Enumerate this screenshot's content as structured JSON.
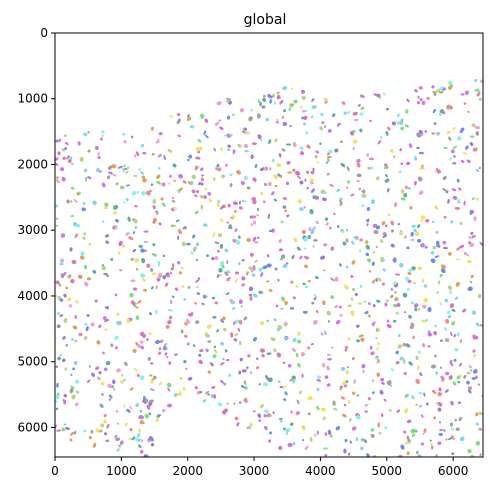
{
  "chart_data": {
    "type": "scatter",
    "title": "global",
    "xlabel": "",
    "ylabel": "",
    "xlim": [
      0,
      6450
    ],
    "ylim": [
      6450,
      0
    ],
    "y_inverted": true,
    "xticks": [
      0,
      1000,
      2000,
      3000,
      4000,
      5000,
      6000
    ],
    "yticks": [
      0,
      1000,
      2000,
      3000,
      4000,
      5000,
      6000
    ],
    "xtick_labels": [
      "0",
      "1000",
      "2000",
      "3000",
      "4000",
      "5000",
      "6000"
    ],
    "ytick_labels": [
      "0",
      "1000",
      "2000",
      "3000",
      "4000",
      "5000",
      "6000"
    ],
    "grid": false,
    "description_of_marks": "thousands of small randomly colored cell segmentation blobs filling the tissue region",
    "tissue_region_outline": {
      "top_boundary": [
        [
          0,
          1500
        ],
        [
          800,
          1500
        ],
        [
          1500,
          1350
        ],
        [
          2200,
          1050
        ],
        [
          2800,
          850
        ],
        [
          3500,
          800
        ],
        [
          4200,
          1050
        ],
        [
          5000,
          850
        ],
        [
          5800,
          750
        ],
        [
          6450,
          700
        ]
      ],
      "bottom_boundary": [
        [
          0,
          6150
        ],
        [
          700,
          6300
        ],
        [
          1400,
          6450
        ],
        [
          1700,
          5700
        ],
        [
          2000,
          5450
        ],
        [
          2600,
          5900
        ],
        [
          3100,
          6200
        ],
        [
          3700,
          6450
        ],
        [
          6450,
          6450
        ]
      ],
      "left_gaps": [
        [
          0,
          4700
        ],
        [
          0,
          4950
        ]
      ]
    },
    "palette": [
      "#6b8df0",
      "#e06ad8",
      "#7ee07a",
      "#f2e06a",
      "#8af0e8",
      "#c77af2",
      "#f08a8a",
      "#a0a0a0",
      "#b9d48a",
      "#d87ab8",
      "#7ad8f0",
      "#9a7ae0",
      "#e0a05a",
      "#5ab0a0",
      "#f0a0d0"
    ],
    "blob_count_estimate": 5200
  }
}
